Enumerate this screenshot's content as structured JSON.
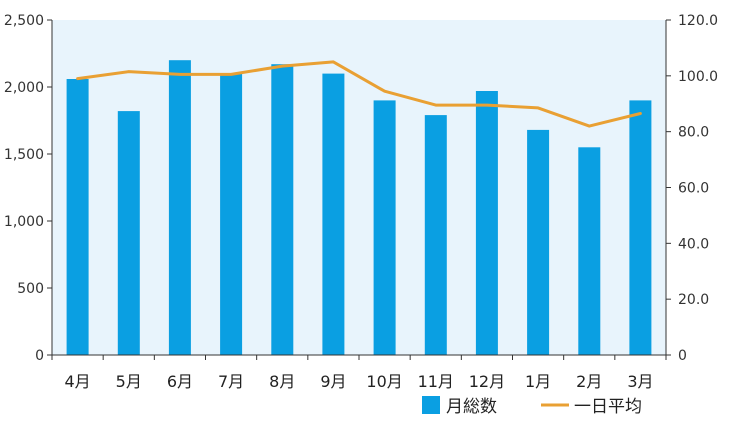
{
  "chart_data": {
    "type": "bar",
    "categories": [
      "4月",
      "5月",
      "6月",
      "7月",
      "8月",
      "9月",
      "10月",
      "11月",
      "12月",
      "1月",
      "2月",
      "3月"
    ],
    "series": [
      {
        "name": "月総数",
        "type": "bar",
        "axis": "left",
        "color": "#0a9fe2",
        "values": [
          2060,
          1820,
          2200,
          2100,
          2170,
          2100,
          1900,
          1790,
          1970,
          1680,
          1550,
          1900
        ]
      },
      {
        "name": "一日平均",
        "type": "line",
        "axis": "right",
        "color": "#e9a033",
        "values": [
          99.0,
          101.5,
          100.5,
          100.5,
          103.5,
          105.0,
          94.5,
          89.5,
          89.5,
          88.5,
          82.0,
          86.5
        ]
      }
    ],
    "y_left": {
      "ylim": [
        0,
        2500
      ],
      "ticks": [
        0,
        500,
        1000,
        1500,
        2000,
        2500
      ],
      "tick_labels": [
        "0",
        "500",
        "1,000",
        "1,500",
        "2,000",
        "2,500"
      ]
    },
    "y_right": {
      "ylim": [
        0,
        120
      ],
      "ticks": [
        0,
        20,
        40,
        60,
        80,
        100,
        120
      ],
      "tick_labels": [
        "0",
        "20.0",
        "40.0",
        "60.0",
        "80.0",
        "100.0",
        "120.0"
      ]
    },
    "grid": false,
    "legend_position": "bottom-right",
    "background_color": "#e8f4fc",
    "axis_color": "#333333"
  }
}
